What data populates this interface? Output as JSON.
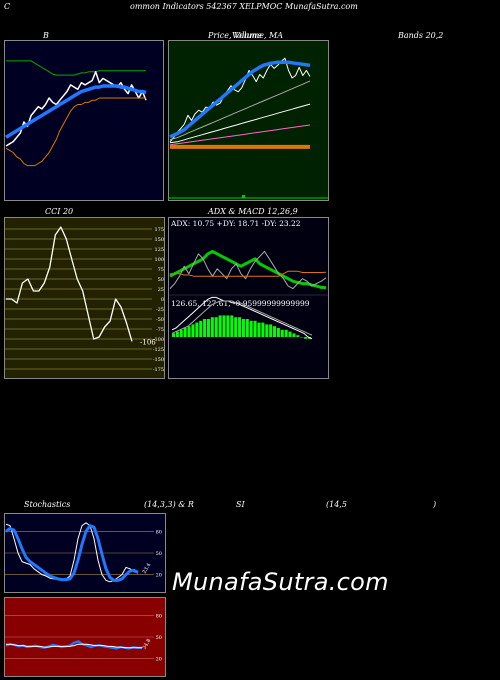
{
  "header": {
    "title": "ommon  Indicators 542367 XELPMOC MunafaSutra.com",
    "prefix": "C"
  },
  "labels": {
    "bollinger": "B",
    "price_volume": "Price, Volume, MA",
    "price_volume_overlap": "Volume",
    "bands": "Bands 20,2",
    "cci": "CCI 20",
    "adx_macd": "ADX  & MACD 12,26,9",
    "stochastics": "Stochastics",
    "stoch_params": "(14,3,3) & R",
    "rsi_part": "SI",
    "rsi_params": "(14,5",
    "rsi_close": ")"
  },
  "watermark": "MunafaSutra.com",
  "colors": {
    "bollinger_bg": "#000022",
    "price_bg": "#002200",
    "cci_bg": "#222200",
    "adx_bg": "#000011",
    "stoch_bg": "#000022",
    "rsi_bg": "#880000",
    "blue": "#2277ff",
    "green": "#00cc00",
    "orange": "#dd7700"
  },
  "chart_data": [
    {
      "type": "line",
      "panel": "bollinger",
      "series": [
        {
          "role": "upper-band",
          "color": "#00aa00",
          "values": [
            100,
            100,
            100,
            100,
            100,
            100,
            100,
            100,
            98,
            96,
            94,
            92,
            90,
            88,
            87,
            87,
            87,
            87,
            87,
            87,
            88,
            89,
            89,
            90,
            90,
            90,
            91,
            91,
            91,
            91,
            91,
            91,
            91,
            91,
            91,
            91,
            91,
            91,
            91,
            91
          ]
        },
        {
          "role": "price",
          "color": "#ffffff",
          "values": [
            22,
            24,
            26,
            30,
            34,
            44,
            40,
            50,
            54,
            58,
            56,
            60,
            66,
            62,
            60,
            64,
            68,
            72,
            78,
            76,
            74,
            80,
            78,
            80,
            82,
            90,
            80,
            84,
            82,
            80,
            78,
            76,
            80,
            74,
            70,
            78,
            72,
            66,
            72,
            64
          ]
        },
        {
          "role": "middle-band",
          "color": "#2277ff",
          "values": [
            30,
            32,
            34,
            36,
            38,
            40,
            42,
            44,
            46,
            48,
            50,
            52,
            54,
            56,
            58,
            60,
            62,
            64,
            66,
            68,
            70,
            72,
            73,
            74,
            75,
            76,
            76,
            77,
            77,
            77,
            77,
            77,
            76,
            76,
            75,
            74,
            73,
            72,
            72,
            71
          ]
        },
        {
          "role": "lower-band",
          "color": "#dd7700",
          "values": [
            20,
            18,
            16,
            12,
            10,
            6,
            4,
            4,
            4,
            6,
            8,
            12,
            16,
            22,
            28,
            36,
            42,
            48,
            54,
            58,
            60,
            60,
            62,
            62,
            64,
            64,
            66,
            66,
            66,
            66,
            66,
            66,
            66,
            66,
            66,
            66,
            66,
            66,
            66,
            66
          ]
        }
      ]
    },
    {
      "type": "line",
      "panel": "price",
      "series": [
        {
          "role": "price",
          "color": "#ffffff",
          "values": [
            20,
            28,
            38,
            46,
            55,
            72,
            62,
            75,
            82,
            78,
            88,
            86,
            98,
            92,
            96,
            110,
            120,
            130,
            122,
            118,
            126,
            142,
            160,
            150,
            138,
            152,
            145,
            160,
            172,
            164,
            170,
            178,
            184,
            160,
            145,
            150,
            166,
            150,
            160,
            148
          ]
        },
        {
          "role": "ma-short",
          "color": "#2277ff",
          "values": [
            30,
            33,
            36,
            40,
            44,
            50,
            56,
            62,
            68,
            74,
            80,
            86,
            92,
            98,
            104,
            110,
            116,
            122,
            128,
            134,
            140,
            146,
            152,
            158,
            162,
            166,
            170,
            172,
            174,
            175,
            176,
            176,
            176,
            176,
            175,
            174,
            173,
            172,
            171,
            170
          ]
        },
        {
          "role": "ma-mid",
          "color": "#aaaaaa",
          "values": [
            24,
            26,
            28,
            31,
            34,
            37,
            40,
            43,
            46,
            49,
            52,
            55,
            58,
            61,
            64,
            67,
            70,
            73,
            76,
            79,
            82,
            85,
            88,
            91,
            94,
            97,
            100,
            103,
            106,
            109,
            112,
            115,
            118,
            121,
            124,
            127,
            130,
            133,
            136,
            139
          ]
        },
        {
          "role": "ma-long",
          "color": "#ffffff",
          "values": [
            18,
            19,
            20,
            22,
            24,
            26,
            28,
            30,
            32,
            34,
            36,
            38,
            40,
            42,
            44,
            46,
            48,
            50,
            52,
            54,
            56,
            58,
            60,
            62,
            64,
            66,
            68,
            70,
            72,
            74,
            76,
            78,
            80,
            82,
            84,
            86,
            88,
            90,
            92,
            94
          ]
        },
        {
          "role": "ma-pink",
          "color": "#ff66cc",
          "values": [
            14,
            15,
            16,
            17,
            18,
            19,
            20,
            21,
            22,
            23,
            24,
            25,
            26,
            27,
            28,
            29,
            30,
            31,
            32,
            33,
            34,
            35,
            36,
            37,
            38,
            39,
            40,
            41,
            42,
            43,
            44,
            45,
            46,
            47,
            48,
            49,
            50,
            51,
            52,
            53
          ]
        },
        {
          "role": "ma-orange",
          "color": "#dd7700",
          "values": [
            10,
            10,
            10,
            10,
            10,
            10,
            10,
            10,
            10,
            10,
            10,
            10,
            10,
            10,
            10,
            10,
            10,
            10,
            10,
            10,
            10,
            10,
            10,
            10,
            10,
            10,
            10,
            10,
            10,
            10,
            10,
            10,
            10,
            10,
            10,
            10,
            10,
            10,
            10,
            10
          ]
        }
      ]
    },
    {
      "type": "line",
      "panel": "cci",
      "yticks": [
        175,
        150,
        125,
        100,
        75,
        50,
        25,
        0,
        -25,
        -50,
        -75,
        -100,
        -125,
        -150,
        -175
      ],
      "last_label": "-106",
      "values": [
        0,
        0,
        -10,
        40,
        50,
        20,
        20,
        40,
        80,
        160,
        180,
        150,
        100,
        50,
        20,
        -40,
        -100,
        -95,
        -70,
        -55,
        0,
        -20,
        -60,
        -106
      ]
    },
    {
      "type": "line",
      "panel": "adx",
      "title_text": "ADX: 10.75  +DY: 18.71  -DY: 23.22",
      "series": [
        {
          "role": "adx",
          "color": "#00cc00",
          "values": [
            20,
            22,
            24,
            26,
            28,
            30,
            32,
            34,
            38,
            40,
            38,
            36,
            34,
            32,
            30,
            28,
            30,
            32,
            34,
            30,
            28,
            26,
            24,
            22,
            20,
            18,
            16,
            15,
            14,
            14,
            13,
            12,
            11,
            10.75
          ]
        },
        {
          "role": "plus-di",
          "color": "#aaaaaa",
          "values": [
            10,
            14,
            20,
            28,
            22,
            30,
            38,
            34,
            26,
            20,
            26,
            22,
            18,
            26,
            30,
            22,
            18,
            26,
            32,
            36,
            40,
            34,
            28,
            22,
            18,
            12,
            10,
            14,
            18,
            16,
            12,
            14,
            16,
            18.71
          ]
        },
        {
          "role": "minus-di",
          "color": "#dd7700",
          "values": [
            22,
            22,
            22,
            21,
            21,
            20,
            20,
            20,
            20,
            20,
            20,
            20,
            20,
            20,
            20,
            20,
            20,
            20,
            20,
            20,
            20,
            20,
            20,
            20,
            22,
            24,
            24,
            24,
            23,
            23,
            23,
            23,
            23,
            23.22
          ]
        }
      ]
    },
    {
      "type": "bar",
      "panel": "macd",
      "title_text": "126.65,  127.61,  -0.95999999999999",
      "series": [
        {
          "role": "histogram",
          "color": "#00ff00",
          "values": [
            2,
            3,
            4,
            5,
            6,
            7,
            8,
            9,
            10,
            10,
            11,
            11,
            12,
            12,
            12,
            12,
            11,
            11,
            10,
            10,
            9,
            9,
            8,
            8,
            7,
            7,
            6,
            5,
            4,
            4,
            3,
            2,
            1,
            0,
            -1,
            -1
          ]
        },
        {
          "role": "macd",
          "color": "#ffffff",
          "values": [
            4,
            5,
            7,
            9,
            11,
            13,
            15,
            17,
            19,
            21,
            22,
            22,
            21,
            20,
            20,
            19,
            19,
            18,
            17,
            16,
            15,
            14,
            13,
            12,
            11,
            10,
            9,
            8,
            7,
            6,
            5,
            4,
            3,
            2,
            0,
            -1
          ]
        },
        {
          "role": "signal",
          "color": "#aaaaaa",
          "values": [
            2,
            3,
            4,
            5,
            6,
            8,
            10,
            12,
            14,
            16,
            18,
            19,
            20,
            20,
            20,
            20,
            19,
            19,
            18,
            17,
            16,
            15,
            14,
            13,
            12,
            11,
            10,
            9,
            8,
            7,
            6,
            5,
            4,
            3,
            2,
            1
          ]
        }
      ]
    },
    {
      "type": "line",
      "panel": "stochastics",
      "yticks": [
        80,
        50,
        20
      ],
      "last_label": "23.4",
      "series": [
        {
          "role": "k",
          "color": "#ffffff",
          "values": [
            90,
            88,
            70,
            50,
            38,
            36,
            34,
            28,
            24,
            20,
            18,
            15,
            14,
            13,
            12,
            14,
            18,
            40,
            70,
            88,
            92,
            88,
            70,
            40,
            20,
            12,
            10,
            12,
            16,
            20,
            30,
            28,
            24,
            22
          ]
        },
        {
          "role": "d",
          "color": "#2277ff",
          "values": [
            80,
            84,
            82,
            70,
            56,
            44,
            38,
            34,
            30,
            26,
            22,
            18,
            16,
            14,
            13,
            13,
            14,
            22,
            40,
            62,
            80,
            88,
            86,
            70,
            48,
            28,
            16,
            12,
            12,
            14,
            20,
            25,
            26,
            23.4
          ]
        }
      ]
    },
    {
      "type": "line",
      "panel": "rsi",
      "yticks": [
        80,
        50,
        20
      ],
      "last_label": "34.8",
      "series": [
        {
          "role": "rsi",
          "color": "#2277ff",
          "values": [
            38,
            40,
            39,
            37,
            38,
            36,
            37,
            38,
            36,
            35,
            37,
            39,
            38,
            36,
            37,
            38,
            42,
            44,
            40,
            38,
            36,
            38,
            39,
            37,
            36,
            35,
            34,
            36,
            35,
            34,
            36,
            35,
            34.8
          ]
        },
        {
          "role": "rsi-ma",
          "color": "#ffffff",
          "values": [
            40,
            40,
            39,
            38,
            38,
            37,
            37,
            37,
            37,
            36,
            36,
            37,
            37,
            37,
            37,
            37,
            38,
            40,
            40,
            40,
            39,
            38,
            38,
            38,
            37,
            37,
            36,
            36,
            35,
            35,
            35,
            35,
            35
          ]
        }
      ]
    }
  ]
}
